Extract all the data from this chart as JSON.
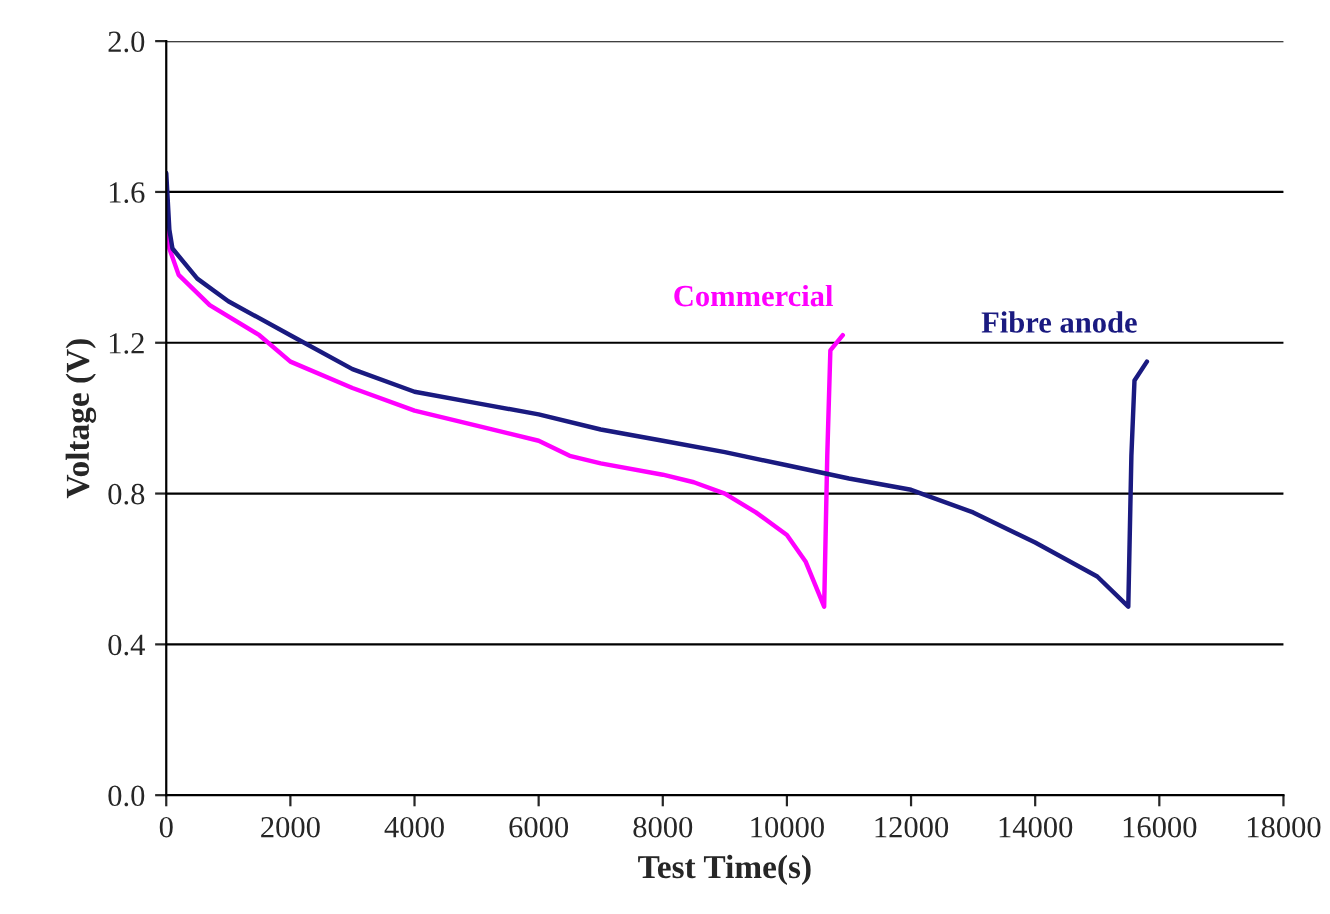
{
  "chart_data": {
    "type": "line",
    "xlabel": "Test Time(s)",
    "ylabel": "Voltage (V)",
    "xlim": [
      0,
      18000
    ],
    "xticks": [
      0,
      2000,
      4000,
      6000,
      8000,
      10000,
      12000,
      14000,
      16000,
      18000
    ],
    "ylim": [
      0,
      2
    ],
    "yticks": [
      {
        "value": 0,
        "label": "0.0"
      },
      {
        "value": 0.4,
        "label": "0.4"
      },
      {
        "value": 0.8,
        "label": "0.8"
      },
      {
        "value": 1.2,
        "label": "1.2"
      },
      {
        "value": 1.6,
        "label": "1.6"
      },
      {
        "value": 2,
        "label": "2.0"
      }
    ],
    "grid": "y",
    "legend": false,
    "marker": "none",
    "line_style": "solid",
    "series": [
      {
        "name": "Commercial",
        "color": "#ff00ff",
        "x": [
          0,
          50,
          200,
          700,
          1500,
          2000,
          3000,
          4000,
          5000,
          6000,
          6500,
          7000,
          8000,
          8500,
          9000,
          9500,
          10000,
          10300,
          10600,
          10650,
          10700,
          10900
        ],
        "values": [
          1.6,
          1.45,
          1.38,
          1.3,
          1.22,
          1.15,
          1.08,
          1.02,
          0.98,
          0.94,
          0.9,
          0.88,
          0.85,
          0.83,
          0.8,
          0.75,
          0.69,
          0.62,
          0.5,
          0.9,
          1.18,
          1.22
        ]
      },
      {
        "name": "Fibre anode",
        "color": "#1a1a80",
        "x": [
          0,
          50,
          100,
          500,
          1000,
          2000,
          3000,
          4000,
          5000,
          6000,
          7000,
          8000,
          9000,
          10000,
          11000,
          12000,
          13000,
          14000,
          15000,
          15500,
          15550,
          15600,
          15800
        ],
        "values": [
          1.65,
          1.5,
          1.45,
          1.37,
          1.31,
          1.22,
          1.13,
          1.07,
          1.04,
          1.01,
          0.97,
          0.94,
          0.91,
          0.875,
          0.84,
          0.81,
          0.75,
          0.67,
          0.58,
          0.5,
          0.9,
          1.1,
          1.15
        ]
      }
    ]
  }
}
